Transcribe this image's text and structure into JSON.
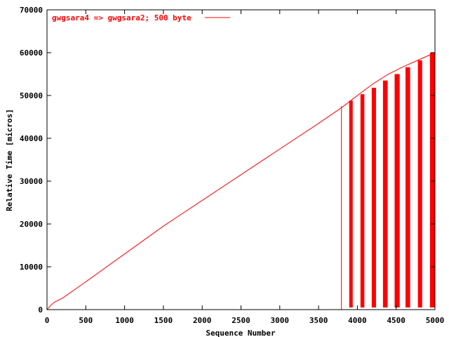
{
  "chart_data": {
    "type": "line",
    "title": "",
    "xlabel": "Sequence Number",
    "ylabel": "Relative Time [micros]",
    "xlim": [
      0,
      5000
    ],
    "ylim": [
      0,
      70000
    ],
    "x_ticks": [
      0,
      500,
      1000,
      1500,
      2000,
      2500,
      3000,
      3500,
      4000,
      4500,
      5000
    ],
    "y_ticks": [
      0,
      10000,
      20000,
      30000,
      40000,
      50000,
      60000,
      70000
    ],
    "grid": false,
    "legend_position": "top-left",
    "series_color": "#ff0000",
    "series": [
      {
        "name": "gwgsara4 => gwgsara2; 500 byte",
        "x": [
          0,
          30,
          60,
          100,
          200,
          500,
          1000,
          1500,
          2000,
          2500,
          3000,
          3500,
          3800,
          4000,
          4200,
          4400,
          4600,
          4800,
          5000
        ],
        "values": [
          0,
          600,
          1200,
          1800,
          2700,
          6500,
          13000,
          19500,
          25500,
          31500,
          37500,
          43500,
          47200,
          50000,
          52700,
          55000,
          56800,
          58400,
          60000
        ]
      }
    ],
    "spikes": [
      {
        "x_start": 3790,
        "x_end": 3795,
        "y_low": 0,
        "y_high": 47500
      },
      {
        "x_start": 3895,
        "x_end": 3940,
        "y_low": 500,
        "y_high": 48800
      },
      {
        "x_start": 4040,
        "x_end": 4090,
        "y_low": 500,
        "y_high": 50300
      },
      {
        "x_start": 4185,
        "x_end": 4240,
        "y_low": 500,
        "y_high": 51800
      },
      {
        "x_start": 4330,
        "x_end": 4390,
        "y_low": 500,
        "y_high": 53500
      },
      {
        "x_start": 4480,
        "x_end": 4545,
        "y_low": 500,
        "y_high": 55000
      },
      {
        "x_start": 4620,
        "x_end": 4680,
        "y_low": 500,
        "y_high": 56600
      },
      {
        "x_start": 4780,
        "x_end": 4835,
        "y_low": 500,
        "y_high": 58200
      },
      {
        "x_start": 4935,
        "x_end": 4995,
        "y_low": 500,
        "y_high": 60000
      }
    ]
  }
}
